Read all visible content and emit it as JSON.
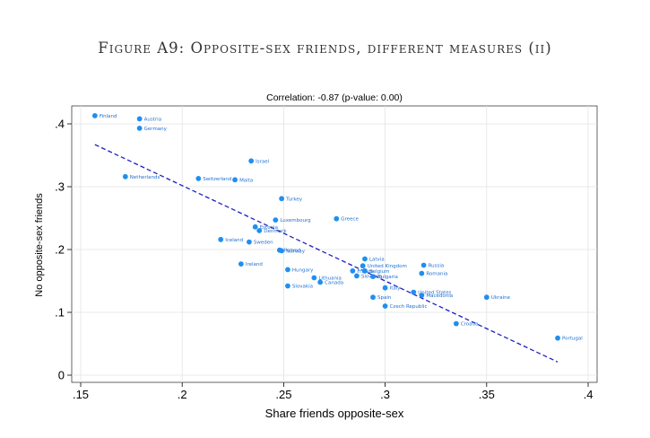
{
  "figure_title": "Figure A9: Opposite-sex friends, different measures (ii)",
  "chart_data": {
    "type": "scatter",
    "title": "Correlation: -0.87 (p-value: 0.00)",
    "xlabel": "Share friends opposite-sex",
    "ylabel": "No opposite-sex friends",
    "xlim": [
      0.15,
      0.4
    ],
    "ylim": [
      0,
      0.42
    ],
    "xticks": [
      0.15,
      0.2,
      0.25,
      0.3,
      0.35,
      0.4
    ],
    "xtick_labels": [
      ".15",
      ".2",
      ".25",
      ".3",
      ".35",
      ".4"
    ],
    "yticks": [
      0,
      0.1,
      0.2,
      0.3,
      0.4
    ],
    "ytick_labels": [
      "0",
      ".1",
      ".2",
      ".3",
      ".4"
    ],
    "grid": true,
    "marker_color": "#1f8ff0",
    "label_color": "#1f6fd1",
    "fit_color": "#1d1fc4",
    "fit_line": {
      "style": "dashed",
      "x": [
        0.157,
        0.385
      ],
      "y": [
        0.367,
        0.021
      ]
    },
    "points": [
      {
        "label": "Finland",
        "x": 0.157,
        "y": 0.413
      },
      {
        "label": "Austria",
        "x": 0.179,
        "y": 0.408
      },
      {
        "label": "Germany",
        "x": 0.179,
        "y": 0.393
      },
      {
        "label": "Netherlands",
        "x": 0.172,
        "y": 0.316
      },
      {
        "label": "Switzerland",
        "x": 0.208,
        "y": 0.313
      },
      {
        "label": "Malta",
        "x": 0.226,
        "y": 0.311
      },
      {
        "label": "Israel",
        "x": 0.234,
        "y": 0.341
      },
      {
        "label": "Turkey",
        "x": 0.249,
        "y": 0.281
      },
      {
        "label": "Luxembourg",
        "x": 0.246,
        "y": 0.247
      },
      {
        "label": "Greece",
        "x": 0.276,
        "y": 0.249
      },
      {
        "label": "Estonia",
        "x": 0.236,
        "y": 0.236
      },
      {
        "label": "Denmark",
        "x": 0.238,
        "y": 0.23
      },
      {
        "label": "Iceland",
        "x": 0.219,
        "y": 0.216
      },
      {
        "label": "Sweden",
        "x": 0.233,
        "y": 0.212
      },
      {
        "label": "Poland",
        "x": 0.248,
        "y": 0.199
      },
      {
        "label": "Norway",
        "x": 0.249,
        "y": 0.198
      },
      {
        "label": "Ireland",
        "x": 0.229,
        "y": 0.177
      },
      {
        "label": "Hungary",
        "x": 0.252,
        "y": 0.168
      },
      {
        "label": "Lithuania",
        "x": 0.265,
        "y": 0.155
      },
      {
        "label": "Canada",
        "x": 0.268,
        "y": 0.148
      },
      {
        "label": "Slovakia",
        "x": 0.252,
        "y": 0.142
      },
      {
        "label": "Latvia",
        "x": 0.29,
        "y": 0.185
      },
      {
        "label": "United Kingdom",
        "x": 0.289,
        "y": 0.174
      },
      {
        "label": "France",
        "x": 0.284,
        "y": 0.166
      },
      {
        "label": "Belgium",
        "x": 0.29,
        "y": 0.166
      },
      {
        "label": "Slovenia",
        "x": 0.286,
        "y": 0.158
      },
      {
        "label": "Bulgaria",
        "x": 0.294,
        "y": 0.157
      },
      {
        "label": "Russia",
        "x": 0.319,
        "y": 0.175
      },
      {
        "label": "Romania",
        "x": 0.318,
        "y": 0.162
      },
      {
        "label": "Italy",
        "x": 0.3,
        "y": 0.139
      },
      {
        "label": "Spain",
        "x": 0.294,
        "y": 0.124
      },
      {
        "label": "United States",
        "x": 0.314,
        "y": 0.132
      },
      {
        "label": "Macedonia",
        "x": 0.318,
        "y": 0.127
      },
      {
        "label": "Ukraine",
        "x": 0.35,
        "y": 0.124
      },
      {
        "label": "Czech Republic",
        "x": 0.3,
        "y": 0.11
      },
      {
        "label": "Croatia",
        "x": 0.335,
        "y": 0.082
      },
      {
        "label": "Portugal",
        "x": 0.385,
        "y": 0.059
      }
    ]
  }
}
